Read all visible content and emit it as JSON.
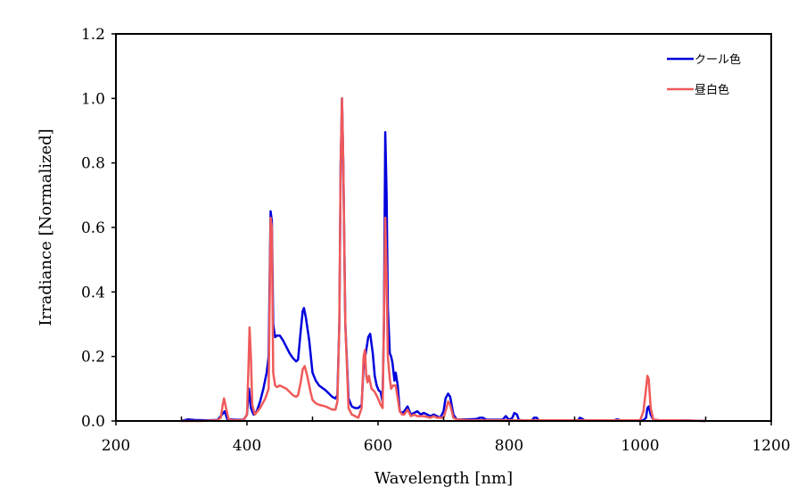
{
  "chart_data": {
    "type": "line",
    "xlabel": "Wavelength [nm]",
    "ylabel": "Irradiance [Normalized]",
    "xlim": [
      200,
      1200
    ],
    "ylim": [
      0,
      1.2
    ],
    "xticks": [
      "200",
      "400",
      "600",
      "800",
      "1000",
      "1200"
    ],
    "yticks": [
      "0.0",
      "0.2",
      "0.4",
      "0.6",
      "0.8",
      "1.0",
      "1.2"
    ],
    "xtick_values": [
      200,
      400,
      600,
      800,
      1000,
      1200
    ],
    "ytick_values": [
      0,
      0.2,
      0.4,
      0.6,
      0.8,
      1.0,
      1.2
    ],
    "legend_position": "top-right",
    "grid": false,
    "series": [
      {
        "name": "クール色",
        "color": "#0000dd",
        "x": [
          300,
          310,
          320,
          340,
          355,
          362,
          366,
          370,
          380,
          395,
          400,
          403,
          406,
          410,
          415,
          420,
          425,
          430,
          433,
          436,
          438,
          440,
          443,
          446,
          450,
          455,
          460,
          465,
          470,
          475,
          478,
          482,
          485,
          487,
          490,
          495,
          500,
          505,
          510,
          520,
          530,
          535,
          538,
          541,
          543,
          545,
          547,
          550,
          555,
          560,
          565,
          570,
          575,
          578,
          582,
          585,
          588,
          592,
          595,
          598,
          601,
          604,
          607,
          609,
          611,
          613,
          615,
          618,
          620,
          622,
          625,
          627,
          630,
          633,
          637,
          640,
          645,
          650,
          655,
          660,
          665,
          670,
          675,
          680,
          685,
          690,
          695,
          700,
          703,
          707,
          710,
          715,
          720,
          730,
          740,
          750,
          755,
          760,
          765,
          770,
          780,
          790,
          795,
          800,
          805,
          808,
          812,
          815,
          820,
          830,
          835,
          838,
          842,
          845,
          850,
          870,
          900,
          905,
          908,
          912,
          915,
          920,
          950,
          960,
          965,
          970,
          1000,
          1005,
          1009,
          1011,
          1013,
          1016,
          1020,
          1030,
          1060,
          1100
        ],
        "y": [
          0.0,
          0.005,
          0.003,
          0.002,
          0.003,
          0.02,
          0.03,
          0.006,
          0.004,
          0.004,
          0.02,
          0.1,
          0.04,
          0.02,
          0.03,
          0.06,
          0.1,
          0.15,
          0.2,
          0.65,
          0.62,
          0.3,
          0.26,
          0.265,
          0.265,
          0.25,
          0.23,
          0.21,
          0.195,
          0.185,
          0.19,
          0.28,
          0.34,
          0.35,
          0.32,
          0.25,
          0.15,
          0.125,
          0.11,
          0.095,
          0.075,
          0.07,
          0.08,
          0.3,
          0.8,
          1.0,
          0.8,
          0.3,
          0.07,
          0.045,
          0.04,
          0.04,
          0.05,
          0.17,
          0.22,
          0.26,
          0.27,
          0.21,
          0.14,
          0.11,
          0.095,
          0.09,
          0.06,
          0.3,
          0.895,
          0.7,
          0.35,
          0.21,
          0.2,
          0.18,
          0.125,
          0.15,
          0.11,
          0.03,
          0.025,
          0.03,
          0.045,
          0.02,
          0.025,
          0.03,
          0.02,
          0.025,
          0.02,
          0.015,
          0.02,
          0.015,
          0.01,
          0.03,
          0.07,
          0.085,
          0.075,
          0.02,
          0.005,
          0.005,
          0.005,
          0.006,
          0.01,
          0.01,
          0.004,
          0.004,
          0.004,
          0.004,
          0.015,
          0.003,
          0.01,
          0.025,
          0.02,
          0.003,
          0.002,
          0.002,
          0.002,
          0.01,
          0.01,
          0.002,
          0.002,
          0.002,
          0.002,
          0.002,
          0.01,
          0.006,
          0.002,
          0.002,
          0.002,
          0.002,
          0.005,
          0.002,
          0.002,
          0.002,
          0.01,
          0.04,
          0.045,
          0.02,
          0.004,
          0.002,
          0.002,
          0.0
        ]
      },
      {
        "name": "昼白色",
        "color": "#f05a5a",
        "x": [
          300,
          330,
          355,
          360,
          363,
          365,
          368,
          372,
          380,
          395,
          400,
          402,
          404,
          406,
          408,
          412,
          420,
          428,
          433,
          436,
          438,
          440,
          443,
          446,
          450,
          455,
          460,
          465,
          470,
          475,
          478,
          482,
          485,
          488,
          492,
          497,
          500,
          505,
          510,
          520,
          530,
          535,
          538,
          541,
          543,
          545,
          547,
          550,
          555,
          560,
          565,
          570,
          575,
          578,
          580,
          582,
          584,
          586,
          590,
          595,
          600,
          604,
          607,
          609,
          611,
          613,
          615,
          618,
          620,
          623,
          627,
          630,
          633,
          637,
          640,
          645,
          650,
          655,
          660,
          670,
          680,
          685,
          690,
          700,
          703,
          707,
          710,
          715,
          720,
          740,
          760,
          780,
          800,
          850,
          900,
          950,
          1000,
          1005,
          1009,
          1011,
          1013,
          1016,
          1020,
          1030,
          1060,
          1100
        ],
        "y": [
          0.0,
          0.0,
          0.002,
          0.01,
          0.05,
          0.07,
          0.04,
          0.005,
          0.002,
          0.003,
          0.02,
          0.15,
          0.29,
          0.2,
          0.05,
          0.02,
          0.04,
          0.07,
          0.1,
          0.63,
          0.6,
          0.15,
          0.11,
          0.105,
          0.11,
          0.105,
          0.1,
          0.09,
          0.08,
          0.075,
          0.08,
          0.12,
          0.16,
          0.17,
          0.14,
          0.09,
          0.065,
          0.055,
          0.05,
          0.045,
          0.035,
          0.035,
          0.06,
          0.3,
          0.8,
          1.0,
          0.8,
          0.3,
          0.04,
          0.02,
          0.015,
          0.01,
          0.04,
          0.2,
          0.22,
          0.14,
          0.12,
          0.14,
          0.1,
          0.09,
          0.07,
          0.05,
          0.04,
          0.3,
          0.63,
          0.45,
          0.2,
          0.13,
          0.1,
          0.11,
          0.11,
          0.07,
          0.03,
          0.02,
          0.02,
          0.035,
          0.015,
          0.02,
          0.015,
          0.015,
          0.01,
          0.015,
          0.01,
          0.01,
          0.03,
          0.06,
          0.05,
          0.01,
          0.005,
          0.002,
          0.002,
          0.002,
          0.002,
          0.002,
          0.002,
          0.002,
          0.002,
          0.03,
          0.1,
          0.14,
          0.13,
          0.04,
          0.005,
          0.002,
          0.002,
          0.0
        ]
      }
    ]
  }
}
